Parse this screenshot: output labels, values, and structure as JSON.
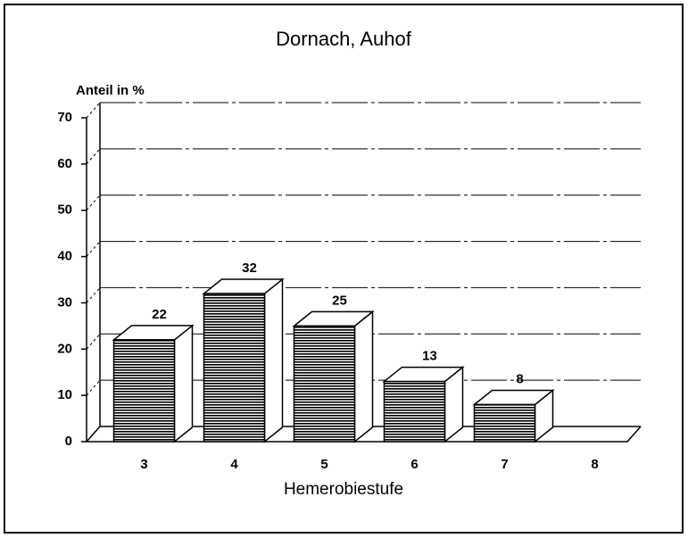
{
  "chart_data": {
    "type": "bar3d",
    "title": "Dornach, Auhof",
    "y_label": "Anteil in %",
    "x_label": "Hemerobiestufe",
    "categories": [
      "3",
      "4",
      "5",
      "6",
      "7",
      "8"
    ],
    "values": [
      22,
      32,
      25,
      13,
      8,
      0
    ],
    "value_labels": [
      "22",
      "32",
      "25",
      "13",
      "8",
      null
    ],
    "ylim": [
      0,
      70
    ],
    "yticks": [
      0,
      10,
      20,
      30,
      40,
      50,
      60,
      70
    ],
    "grid": true,
    "color": "#000000"
  }
}
